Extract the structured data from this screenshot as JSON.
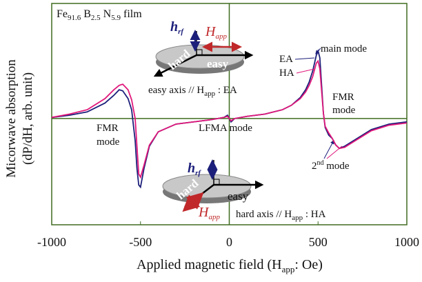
{
  "chart_data": {
    "type": "line",
    "title": [
      "Fe",
      "91.6",
      " B",
      "2.5",
      " N",
      "5.9",
      " film"
    ],
    "y_label": [
      "Micorwave absorption",
      "(dP/dH, arb. unit)"
    ],
    "x_label": [
      "Applied magnetic field (H",
      "app",
      ": Oe)"
    ],
    "x": [
      -1000,
      -900,
      -800,
      -700,
      -650,
      -620,
      -600,
      -570,
      -550,
      -530,
      -520,
      -510,
      -500,
      -480,
      -450,
      -400,
      -300,
      -200,
      -100,
      -30,
      -10,
      0,
      10,
      30,
      100,
      200,
      300,
      350,
      400,
      430,
      450,
      470,
      490,
      500,
      510,
      520,
      530,
      540,
      560,
      580,
      600,
      620,
      650,
      700,
      800,
      900,
      1000
    ],
    "series": [
      {
        "name": "EA",
        "color": "#1c1f7a",
        "values": [
          0.01,
          0.03,
          0.06,
          0.14,
          0.21,
          0.26,
          0.25,
          0.18,
          0.08,
          -0.2,
          -0.45,
          -0.6,
          -0.62,
          -0.45,
          -0.25,
          -0.12,
          -0.05,
          -0.03,
          -0.01,
          0.01,
          0.03,
          0,
          -0.03,
          0,
          0.02,
          0.04,
          0.08,
          0.12,
          0.19,
          0.26,
          0.33,
          0.43,
          0.57,
          0.61,
          0.55,
          0.3,
          0.05,
          -0.08,
          -0.15,
          -0.18,
          -0.24,
          -0.27,
          -0.25,
          -0.2,
          -0.1,
          -0.05,
          -0.03
        ]
      },
      {
        "name": "HA",
        "color": "#e0177a",
        "values": [
          0.01,
          0.04,
          0.08,
          0.18,
          0.26,
          0.3,
          0.31,
          0.26,
          0.17,
          0,
          -0.25,
          -0.5,
          -0.53,
          -0.42,
          -0.24,
          -0.12,
          -0.05,
          -0.03,
          -0.01,
          0.01,
          0.02,
          0,
          -0.02,
          0,
          0.02,
          0.04,
          0.08,
          0.12,
          0.18,
          0.24,
          0.3,
          0.38,
          0.5,
          0.52,
          0.45,
          0.25,
          0.05,
          -0.07,
          -0.13,
          -0.18,
          -0.24,
          -0.27,
          -0.26,
          -0.21,
          -0.11,
          -0.06,
          -0.04
        ]
      }
    ],
    "xlim": [
      -1000,
      1000
    ],
    "xticks": [
      -1000,
      -500,
      0,
      500,
      1000
    ],
    "ylim": [
      -0.96,
      1.04
    ],
    "annotations": {
      "main_mode": "main mode",
      "fmr_right": [
        "FMR",
        "mode"
      ],
      "fmr_left": [
        "FMR",
        "mode"
      ],
      "lfma": "LFMA mode",
      "second_mode": [
        "2",
        "nd",
        " mode"
      ],
      "easy_caption": [
        "easy axis // H",
        "app",
        " : EA"
      ],
      "hard_caption": [
        "hard axis // H",
        "app",
        " : HA"
      ],
      "h_rf": [
        "h",
        "rf"
      ],
      "h_app": [
        "H",
        "app"
      ],
      "hard": "hard",
      "easy": "easy"
    }
  }
}
